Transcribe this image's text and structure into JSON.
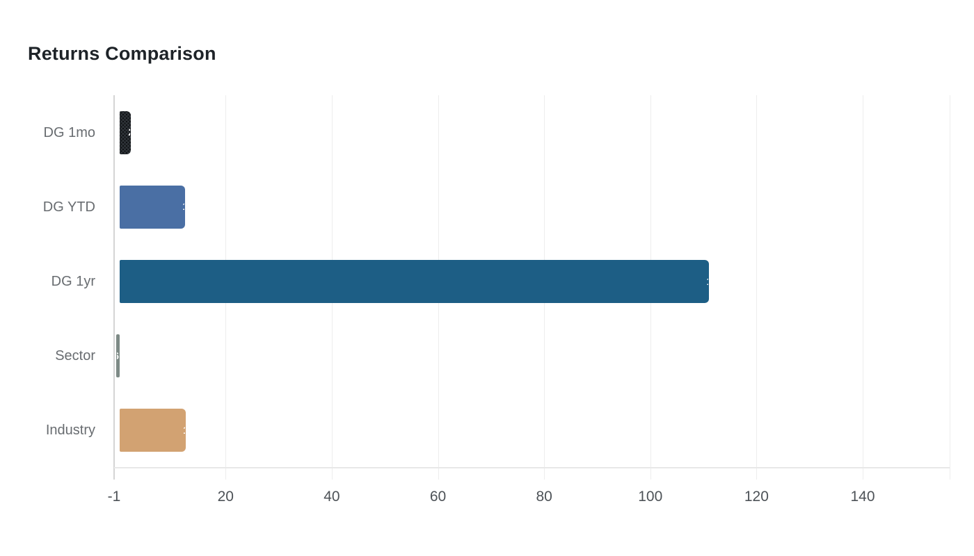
{
  "chart_data": {
    "type": "bar",
    "orientation": "horizontal",
    "title": "Returns Comparison",
    "categories": [
      "DG 1mo",
      "DG YTD",
      "DG 1yr",
      "Sector",
      "Industry"
    ],
    "values": [
      2.2,
      12.4,
      111.1,
      -0.6,
      12.5
    ],
    "value_labels": [
      "2.2",
      "12.4",
      "111.1",
      "-0.6",
      "12.5"
    ],
    "bar_colors": [
      "#2e3338",
      "#4a6fa4",
      "#1d5e85",
      "#7d8a86",
      "#d2a272"
    ],
    "bar_patterns": [
      "dots",
      "solid",
      "solid",
      "solid",
      "solid"
    ],
    "x_ticks": [
      -1,
      20,
      40,
      60,
      80,
      100,
      120,
      140
    ],
    "x_tick_labels": [
      "-1",
      "20",
      "40",
      "60",
      "80",
      "100",
      "120",
      "140"
    ],
    "xlim": [
      -1,
      156.4
    ],
    "grid": true,
    "legend": false,
    "colors": {
      "title": "#1e2328",
      "category_label": "#686c70",
      "tick_label": "#4d5257",
      "gridline": "#ededed",
      "axis_line": "#d4d4d4",
      "bottom_axis_line": "#e8e8e8",
      "data_label": "#ffffff",
      "background": "#ffffff"
    }
  }
}
